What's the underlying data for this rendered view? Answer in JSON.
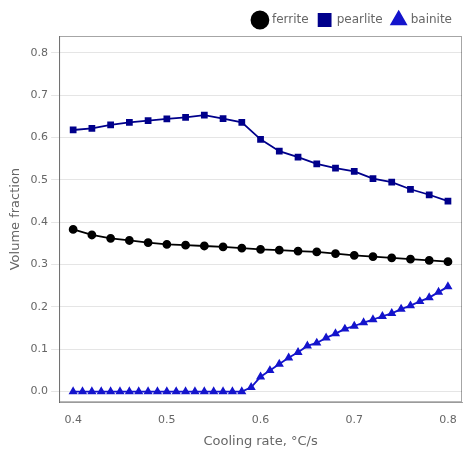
{
  "chart_data": {
    "type": "line",
    "x_label": "Cooling rate, °C/s",
    "y_label": "Volume fraction",
    "series": [
      {
        "name": "ferrite",
        "color": "#000000",
        "marker": "circle",
        "x": [
          0.4,
          0.42,
          0.44,
          0.46,
          0.48,
          0.5,
          0.52,
          0.54,
          0.56,
          0.58,
          0.6,
          0.62,
          0.64,
          0.66,
          0.68,
          0.7,
          0.72,
          0.74,
          0.76,
          0.78,
          0.8
        ],
        "values": [
          0.383,
          0.37,
          0.362,
          0.357,
          0.352,
          0.348,
          0.346,
          0.344,
          0.342,
          0.339,
          0.336,
          0.334,
          0.332,
          0.33,
          0.326,
          0.322,
          0.319,
          0.316,
          0.313,
          0.31,
          0.307
        ]
      },
      {
        "name": "pearlite",
        "color": "#00008B",
        "marker": "square",
        "x": [
          0.4,
          0.42,
          0.44,
          0.46,
          0.48,
          0.5,
          0.52,
          0.54,
          0.56,
          0.58,
          0.6,
          0.62,
          0.64,
          0.66,
          0.68,
          0.7,
          0.72,
          0.74,
          0.76,
          0.78,
          0.8
        ],
        "values": [
          0.618,
          0.622,
          0.63,
          0.636,
          0.64,
          0.644,
          0.648,
          0.653,
          0.645,
          0.636,
          0.596,
          0.568,
          0.554,
          0.538,
          0.528,
          0.52,
          0.503,
          0.495,
          0.478,
          0.465,
          0.45
        ]
      },
      {
        "name": "bainite",
        "color": "#1414CC",
        "marker": "triangle",
        "x": [
          0.4,
          0.41,
          0.42,
          0.43,
          0.44,
          0.45,
          0.46,
          0.47,
          0.48,
          0.49,
          0.5,
          0.51,
          0.52,
          0.53,
          0.54,
          0.55,
          0.56,
          0.57,
          0.58,
          0.59,
          0.6,
          0.61,
          0.62,
          0.63,
          0.64,
          0.65,
          0.66,
          0.67,
          0.68,
          0.69,
          0.7,
          0.71,
          0.72,
          0.73,
          0.74,
          0.75,
          0.76,
          0.77,
          0.78,
          0.79,
          0.8
        ],
        "values": [
          0.0,
          0.0,
          0.0,
          0.0,
          0.0,
          0.0,
          0.0,
          0.0,
          0.0,
          0.0,
          0.0,
          0.0,
          0.0,
          0.0,
          0.0,
          0.0,
          0.0,
          0.0,
          0.0,
          0.01,
          0.035,
          0.05,
          0.065,
          0.08,
          0.093,
          0.108,
          0.115,
          0.127,
          0.137,
          0.148,
          0.155,
          0.163,
          0.17,
          0.178,
          0.185,
          0.195,
          0.203,
          0.213,
          0.222,
          0.235,
          0.248
        ]
      }
    ],
    "xlim": [
      0.385,
      0.815
    ],
    "ylim": [
      -0.025,
      0.84
    ],
    "xticks": [
      0.4,
      0.5,
      0.6,
      0.7,
      0.8
    ],
    "yticks": [
      {
        "value": 0.0,
        "label": "0.0"
      },
      0.1,
      0.2,
      0.3,
      0.4,
      0.5,
      0.6,
      0.7,
      0.8
    ],
    "grid": "y",
    "legend": "upper right"
  }
}
